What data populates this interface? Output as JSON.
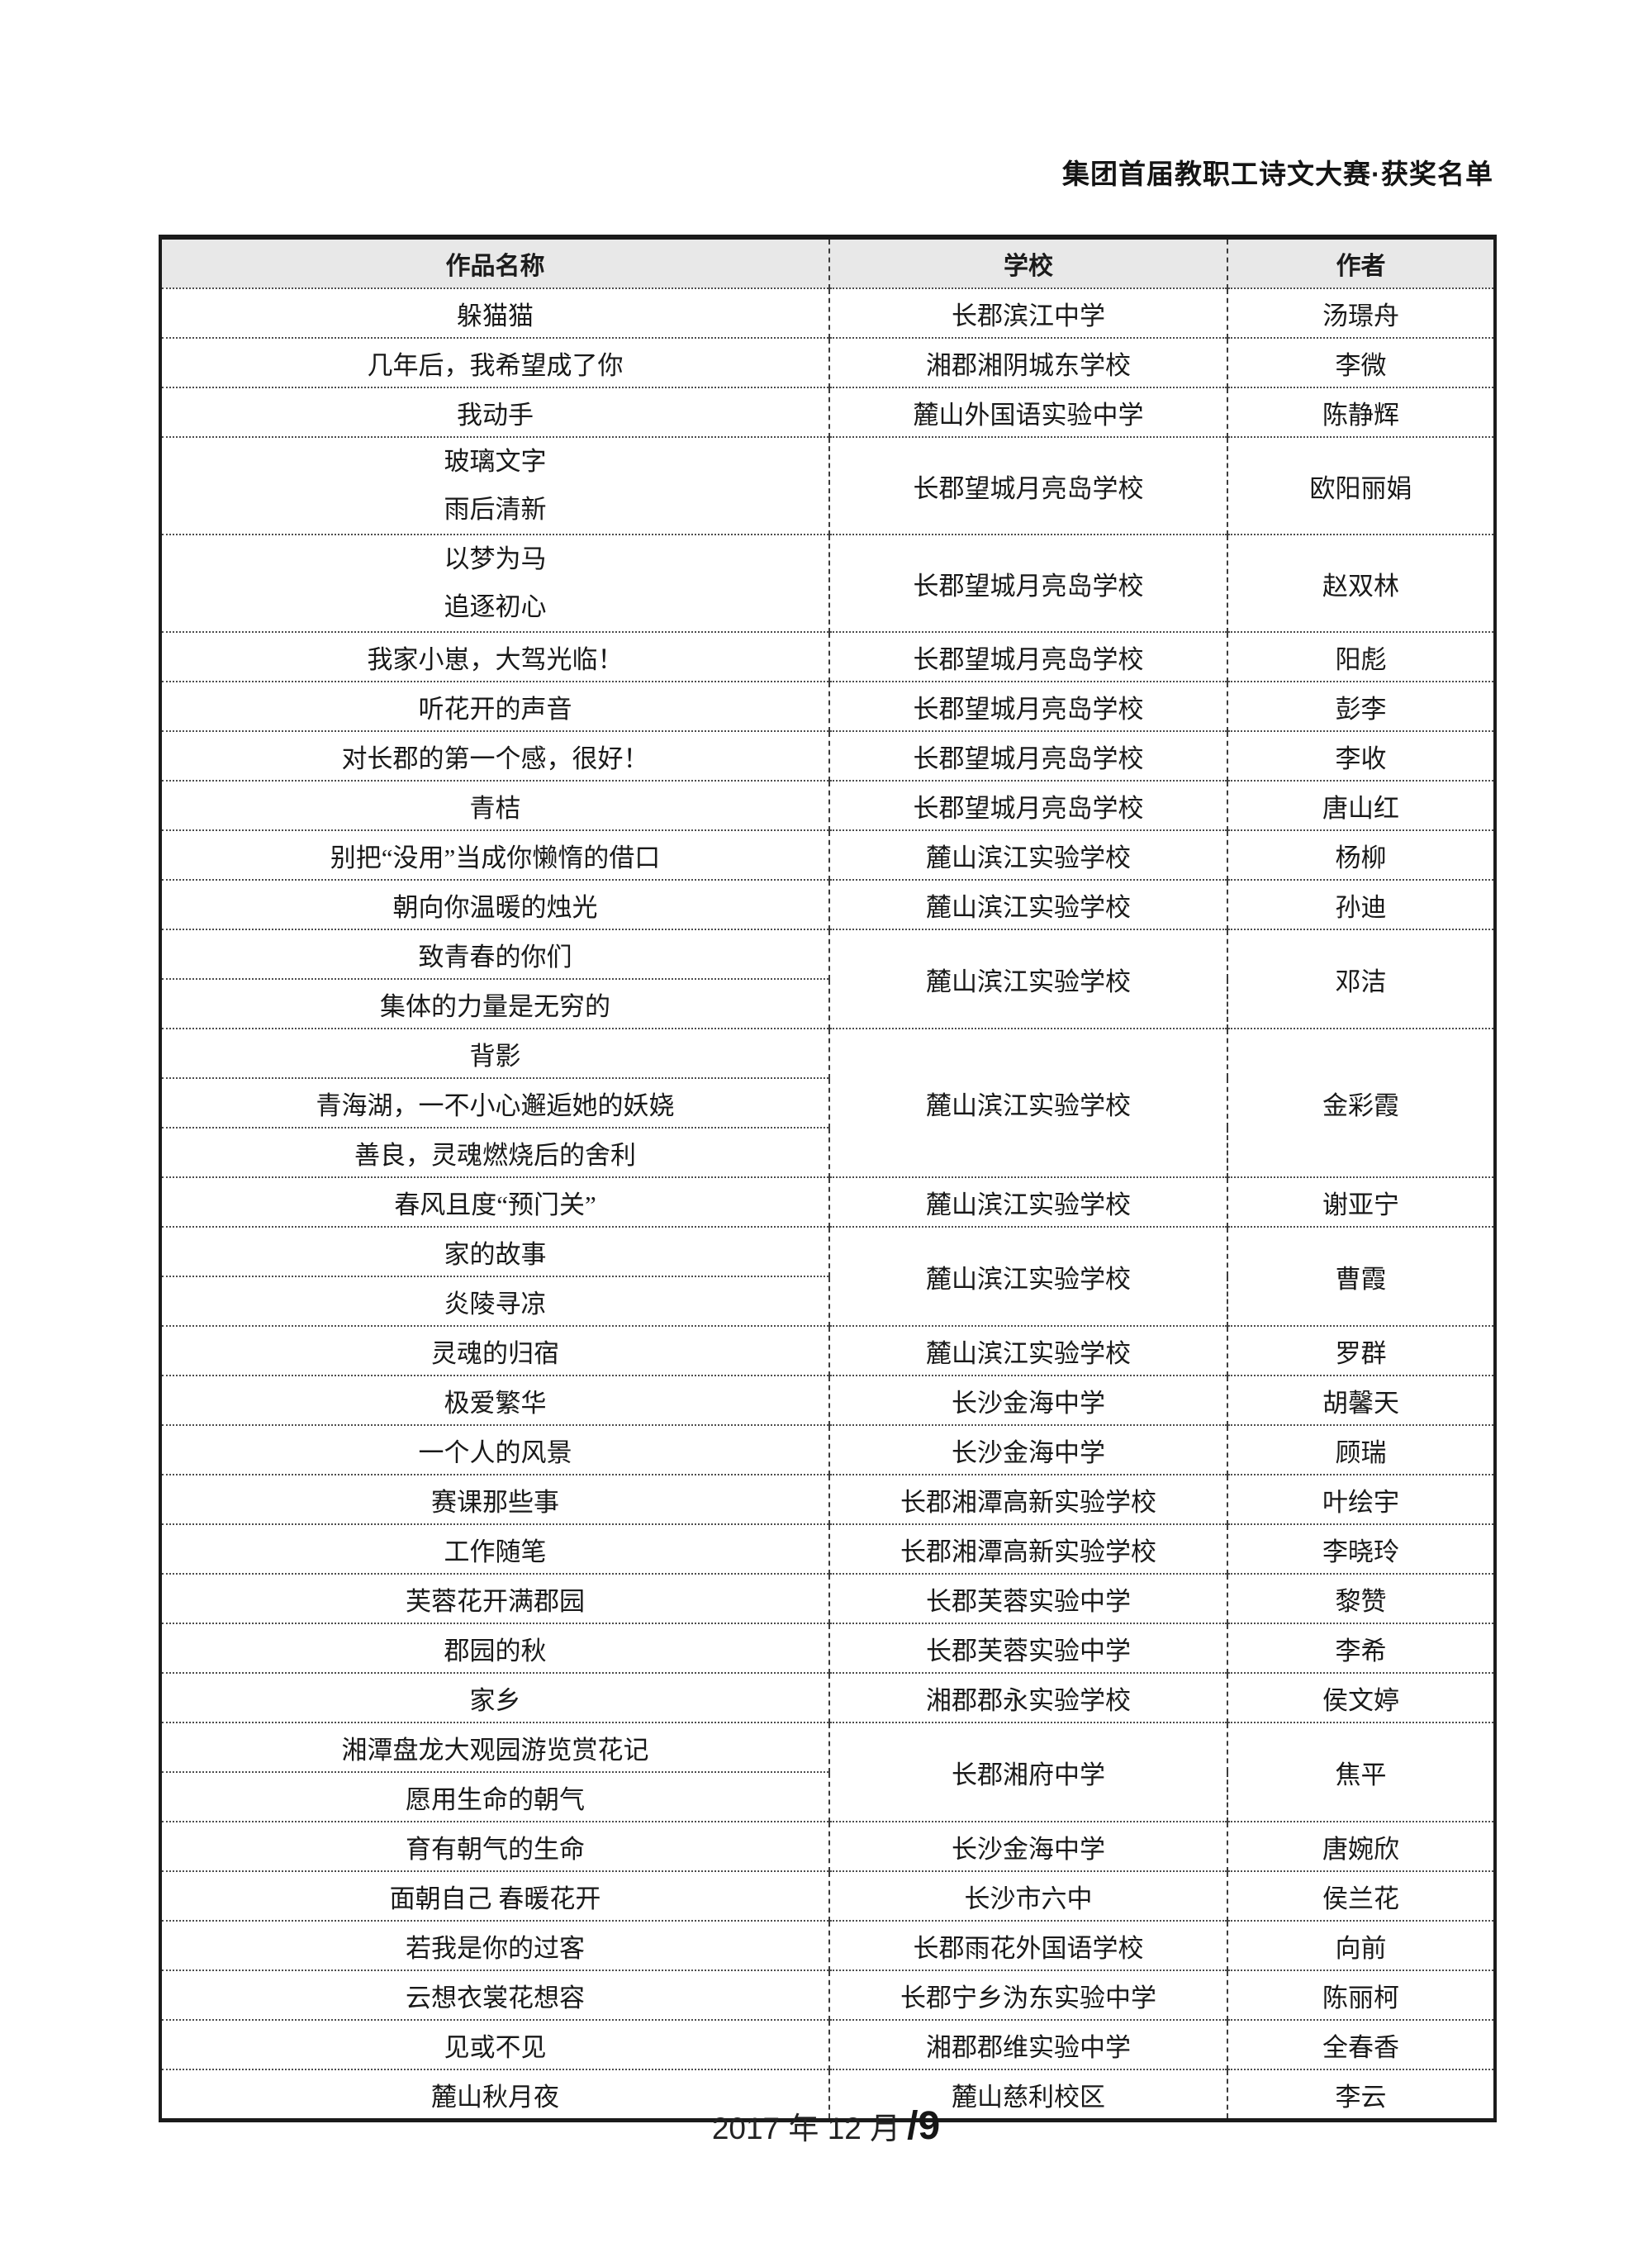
{
  "page_header": {
    "title": "集团首届教职工诗文大赛·获奖名单"
  },
  "table": {
    "headers": [
      "作品名称",
      "学校",
      "作者"
    ],
    "rows": [
      {
        "titles": [
          "躲猫猫"
        ],
        "school": "长郡滨江中学",
        "author": "汤璟舟"
      },
      {
        "titles": [
          "几年后，我希望成了你"
        ],
        "school": "湘郡湘阴城东学校",
        "author": "李微"
      },
      {
        "titles": [
          "我动手"
        ],
        "school": "麓山外国语实验中学",
        "author": "陈静辉"
      },
      {
        "titles": [
          "玻璃文字",
          "雨后清新"
        ],
        "split": false,
        "school": "长郡望城月亮岛学校",
        "author": "欧阳丽娟"
      },
      {
        "titles": [
          "以梦为马",
          "追逐初心"
        ],
        "split": false,
        "school": "长郡望城月亮岛学校",
        "author": "赵双林"
      },
      {
        "titles": [
          "我家小崽，大驾光临！"
        ],
        "school": "长郡望城月亮岛学校",
        "author": "阳彪"
      },
      {
        "titles": [
          "听花开的声音"
        ],
        "school": "长郡望城月亮岛学校",
        "author": "彭李"
      },
      {
        "titles": [
          "对长郡的第一个感，很好！"
        ],
        "school": "长郡望城月亮岛学校",
        "author": "李收"
      },
      {
        "titles": [
          "青桔"
        ],
        "school": "长郡望城月亮岛学校",
        "author": "唐山红"
      },
      {
        "titles": [
          "别把“没用”当成你懒惰的借口"
        ],
        "school": "麓山滨江实验学校",
        "author": "杨柳"
      },
      {
        "titles": [
          "朝向你温暖的烛光"
        ],
        "school": "麓山滨江实验学校",
        "author": "孙迪"
      },
      {
        "titles": [
          "致青春的你们",
          "集体的力量是无穷的"
        ],
        "split": true,
        "school": "麓山滨江实验学校",
        "author": "邓洁"
      },
      {
        "titles": [
          "背影",
          "青海湖，一不小心邂逅她的妖娆",
          "善良，灵魂燃烧后的舍利"
        ],
        "split": true,
        "school": "麓山滨江实验学校",
        "author": "金彩霞"
      },
      {
        "titles": [
          "春风且度“预门关”"
        ],
        "school": "麓山滨江实验学校",
        "author": "谢亚宁"
      },
      {
        "titles": [
          "家的故事",
          "炎陵寻凉"
        ],
        "split": true,
        "school": "麓山滨江实验学校",
        "author": "曹霞"
      },
      {
        "titles": [
          "灵魂的归宿"
        ],
        "school": "麓山滨江实验学校",
        "author": "罗群"
      },
      {
        "titles": [
          "极爱繁华"
        ],
        "school": "长沙金海中学",
        "author": "胡馨天"
      },
      {
        "titles": [
          "一个人的风景"
        ],
        "school": "长沙金海中学",
        "author": "顾瑞"
      },
      {
        "titles": [
          "赛课那些事"
        ],
        "school": "长郡湘潭高新实验学校",
        "author": "叶绘宇"
      },
      {
        "titles": [
          "工作随笔"
        ],
        "school": "长郡湘潭高新实验学校",
        "author": "李晓玲"
      },
      {
        "titles": [
          "芙蓉花开满郡园"
        ],
        "school": "长郡芙蓉实验中学",
        "author": "黎赞"
      },
      {
        "titles": [
          "郡园的秋"
        ],
        "school": "长郡芙蓉实验中学",
        "author": "李希"
      },
      {
        "titles": [
          "家乡"
        ],
        "school": "湘郡郡永实验学校",
        "author": "侯文婷"
      },
      {
        "titles": [
          "湘潭盘龙大观园游览赏花记",
          "愿用生命的朝气"
        ],
        "split": true,
        "school": "长郡湘府中学",
        "author": "焦平"
      },
      {
        "titles": [
          "育有朝气的生命"
        ],
        "school": "长沙金海中学",
        "author": "唐婉欣"
      },
      {
        "titles": [
          "面朝自己 春暖花开"
        ],
        "school": "长沙市六中",
        "author": "侯兰花"
      },
      {
        "titles": [
          "若我是你的过客"
        ],
        "school": "长郡雨花外国语学校",
        "author": "向前"
      },
      {
        "titles": [
          "云想衣裳花想容"
        ],
        "school": "长郡宁乡沩东实验中学",
        "author": "陈丽柯"
      },
      {
        "titles": [
          "见或不见"
        ],
        "school": "湘郡郡维实验中学",
        "author": "全春香"
      },
      {
        "titles": [
          "麓山秋月夜"
        ],
        "school": "麓山慈利校区",
        "author": "李云"
      }
    ]
  },
  "footer": {
    "date": "2017 年 12 月",
    "page": "/9"
  },
  "colors": {
    "page_bg": "#ffffff",
    "header_row_bg": "#e8e8e8",
    "border": "#1b1b1b",
    "divider": "#4d4d4d",
    "text": "#191919"
  }
}
